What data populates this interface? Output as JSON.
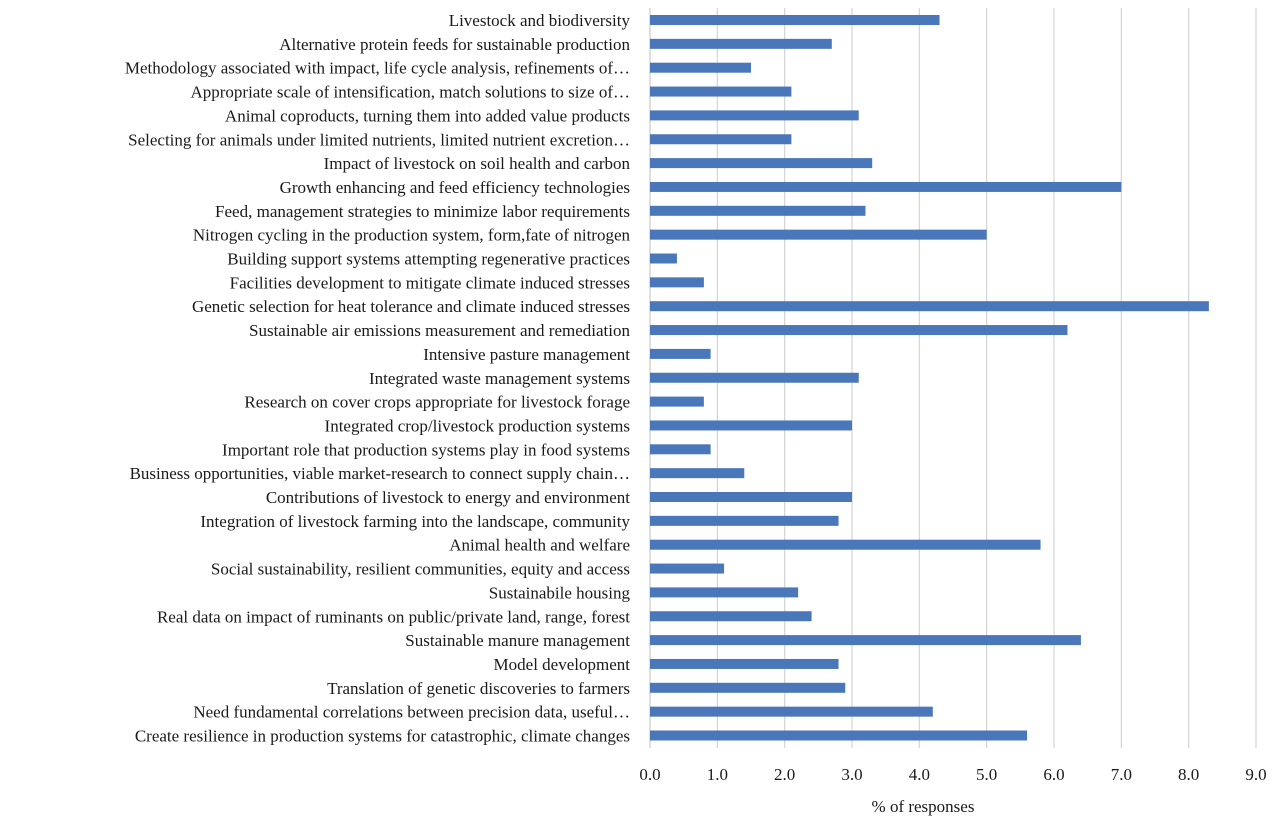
{
  "chart_data": {
    "type": "bar",
    "orientation": "horizontal",
    "xlabel": "% of responses",
    "xlim": [
      0,
      9
    ],
    "x_ticks": [
      "0.0",
      "1.0",
      "2.0",
      "3.0",
      "4.0",
      "5.0",
      "6.0",
      "7.0",
      "8.0",
      "9.0"
    ],
    "grid": true,
    "bar_color": "#4a77ba",
    "categories": [
      "Livestock and biodiversity",
      "Alternative protein feeds for sustainable production",
      "Methodology associated with impact, life cycle analysis, refinements of…",
      "Appropriate scale of intensification, match solutions to size of…",
      "Animal coproducts, turning them into added value products",
      "Selecting for animals under limited nutrients, limited nutrient excretion…",
      "Impact of livestock on soil health and carbon",
      "Growth enhancing and feed efficiency technologies",
      "Feed, management strategies to minimize labor requirements",
      "Nitrogen cycling in the production system, form,fate of nitrogen",
      "Building support systems attempting regenerative practices",
      "Facilities development to mitigate climate induced stresses",
      "Genetic selection for heat tolerance and climate induced stresses",
      "Sustainable air emissions measurement and remediation",
      "Intensive pasture management",
      "Integrated waste management systems",
      "Research on cover crops appropriate for livestock forage",
      "Integrated crop/livestock production systems",
      "Important role that production systems play in food systems",
      "Business opportunities, viable market-research to connect supply chain…",
      "Contributions of livestock to energy and environment",
      "Integration of livestock farming into the landscape, community",
      "Animal health and welfare",
      "Social sustainability, resilient communities, equity and access",
      "Sustainabile housing",
      "Real data on impact of ruminants on public/private land, range, forest",
      "Sustainable manure management",
      "Model development",
      "Translation of genetic discoveries to farmers",
      "Need fundamental correlations between precision data, useful…",
      "Create resilience in production systems for catastrophic, climate changes"
    ],
    "values": [
      4.3,
      2.7,
      1.5,
      2.1,
      3.1,
      2.1,
      3.3,
      7.0,
      3.2,
      5.0,
      0.4,
      0.8,
      8.3,
      6.2,
      0.9,
      3.1,
      0.8,
      3.0,
      0.9,
      1.4,
      3.0,
      2.8,
      5.8,
      1.1,
      2.2,
      2.4,
      6.4,
      2.8,
      2.9,
      4.2,
      5.6
    ]
  }
}
